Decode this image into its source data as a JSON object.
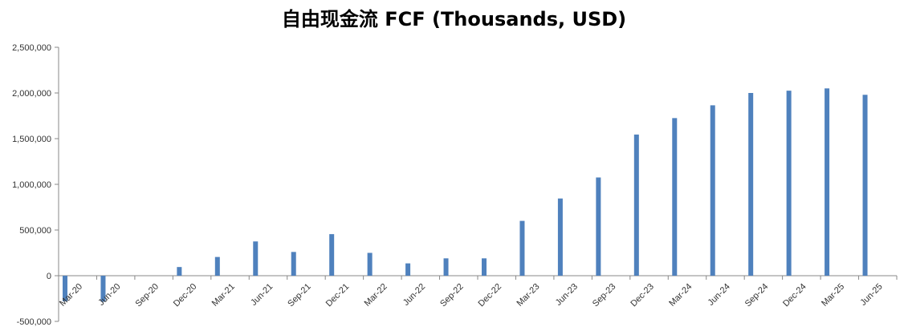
{
  "chart_data": {
    "type": "bar",
    "title": "自由现金流 FCF (Thousands, USD)",
    "xlabel": "",
    "ylabel": "",
    "ylim": [
      -500000,
      2500000
    ],
    "yticks": [
      -500000,
      0,
      500000,
      1000000,
      1500000,
      2000000,
      2500000
    ],
    "ytick_labels": [
      "-500,000",
      "0",
      "500,000",
      "1,000,000",
      "1,500,000",
      "2,000,000",
      "2,500,000"
    ],
    "grid": false,
    "legend": "none",
    "bar_color": "#4F81BD",
    "categories": [
      "Mar-20",
      "Jun-20",
      "Sep-20",
      "Dec-20",
      "Mar-21",
      "Jun-21",
      "Sep-21",
      "Dec-21",
      "Mar-22",
      "Jun-22",
      "Sep-22",
      "Dec-22",
      "Mar-23",
      "Jun-23",
      "Sep-23",
      "Dec-23",
      "Mar-24",
      "Jun-24",
      "Sep-24",
      "Dec-24",
      "Mar-25",
      "Jun-25"
    ],
    "values": [
      -280000,
      -285000,
      0,
      95000,
      205000,
      375000,
      260000,
      455000,
      250000,
      135000,
      190000,
      190000,
      600000,
      845000,
      1075000,
      1545000,
      1725000,
      1865000,
      2000000,
      2025000,
      2050000,
      1980000
    ]
  }
}
